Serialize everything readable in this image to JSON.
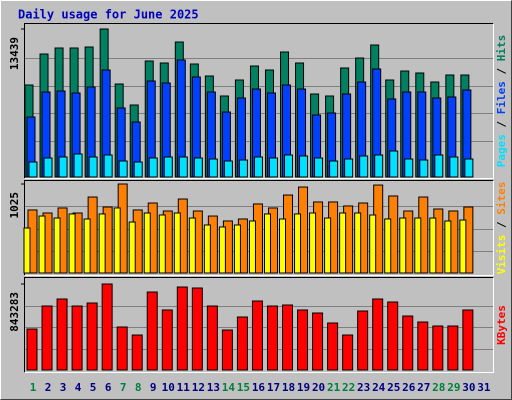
{
  "chart_data": [
    {
      "type": "bar",
      "title": "Daily usage for June 2025",
      "categories": [
        "1",
        "2",
        "3",
        "4",
        "5",
        "6",
        "7",
        "8",
        "9",
        "10",
        "11",
        "12",
        "13",
        "14",
        "15",
        "16",
        "17",
        "18",
        "19",
        "20",
        "21",
        "22",
        "23",
        "24",
        "25",
        "26",
        "27",
        "28",
        "29",
        "30",
        "31"
      ],
      "label_colors": [
        "#008040",
        "#000080",
        "#000080",
        "#000080",
        "#000080",
        "#000080",
        "#008040",
        "#008040",
        "#000080",
        "#000080",
        "#000080",
        "#000080",
        "#000080",
        "#008040",
        "#008040",
        "#000080",
        "#000080",
        "#000080",
        "#000080",
        "#000080",
        "#008040",
        "#008040",
        "#000080",
        "#000080",
        "#000080",
        "#000080",
        "#000080",
        "#008040",
        "#008040",
        "#000080",
        "#000080"
      ],
      "legend_separator": "/",
      "ylim": [
        0,
        13439
      ],
      "yticks": [
        13439
      ],
      "series": [
        {
          "name": "Hits",
          "color": "#008060",
          "values": [
            8354,
            11169,
            11714,
            11714,
            11804,
            13439,
            8445,
            6538,
            10533,
            10352,
            12258,
            10261,
            9171,
            7355,
            8808,
            10079,
            9716,
            11351,
            10352,
            7537,
            7355,
            9898,
            10806,
            11986,
            8808,
            9625,
            9444,
            8626,
            9262,
            9262,
            null
          ]
        },
        {
          "name": "Files",
          "color": "#0040ff",
          "values": [
            5448,
            7718,
            7809,
            7627,
            8172,
            9716,
            6266,
            4994,
            8717,
            8536,
            10624,
            9080,
            7718,
            5902,
            7173,
            7991,
            7628,
            8354,
            7991,
            5630,
            5812,
            7537,
            8626,
            9807,
            7083,
            7718,
            7718,
            7173,
            7264,
            7900,
            null
          ]
        },
        {
          "name": "Pages",
          "color": "#00e0ff",
          "values": [
            1362,
            1725,
            1816,
            2088,
            1816,
            1998,
            1453,
            1362,
            1725,
            1816,
            1816,
            1725,
            1634,
            1453,
            1544,
            1816,
            1725,
            1998,
            1907,
            1725,
            1453,
            1634,
            1907,
            1998,
            2361,
            1634,
            1544,
            1998,
            1816,
            1634,
            null
          ]
        }
      ]
    },
    {
      "type": "bar",
      "legend_separator": "/",
      "ylim": [
        0,
        1025
      ],
      "yticks": [
        1025
      ],
      "series": [
        {
          "name": "Sites",
          "color": "#ff8000",
          "values": [
            726,
            691,
            749,
            691,
            875,
            760,
            1025,
            726,
            806,
            714,
            852,
            714,
            656,
            599,
            622,
            795,
            749,
            898,
            990,
            818,
            818,
            772,
            806,
            1013,
            887,
            714,
            875,
            737,
            714,
            760,
            null
          ]
        },
        {
          "name": "Visits",
          "color": "#ffff00",
          "values": [
            518,
            656,
            633,
            680,
            622,
            680,
            749,
            587,
            691,
            668,
            691,
            633,
            553,
            530,
            553,
            599,
            680,
            622,
            680,
            691,
            633,
            691,
            691,
            668,
            622,
            633,
            633,
            633,
            599,
            610,
            null
          ]
        }
      ]
    },
    {
      "type": "bar",
      "ylim": [
        0,
        843283
      ],
      "yticks": [
        843283
      ],
      "series": [
        {
          "name": "KBytes",
          "color": "#ff0000",
          "values": [
            402030,
            627560,
            696200,
            627560,
            656980,
            843283,
            421640,
            343200,
            764840,
            588340,
            813870,
            804060,
            627560,
            392220,
            519700,
            676590,
            627560,
            637370,
            588340,
            558920,
            460860,
            343200,
            578530,
            696200,
            666780,
            529500,
            470670,
            431450,
            431450,
            588340,
            null
          ]
        }
      ]
    }
  ]
}
